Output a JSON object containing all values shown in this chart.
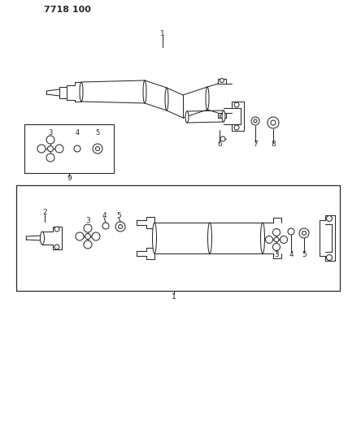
{
  "title": "7718 100",
  "bg_color": "#ffffff",
  "line_color": "#2a2a2a",
  "figsize": [
    4.28,
    5.33
  ],
  "dpi": 100,
  "lw": 0.75
}
